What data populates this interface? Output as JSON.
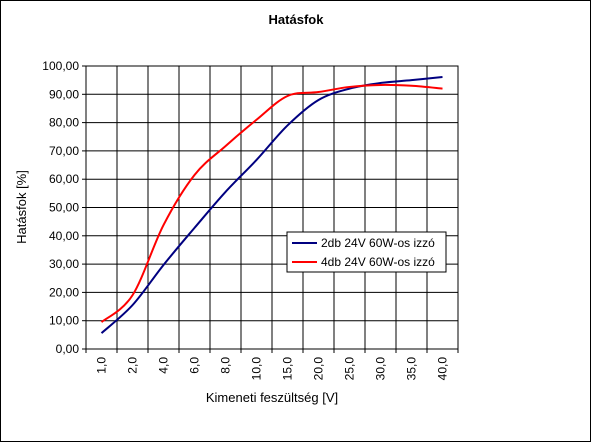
{
  "chart_data": {
    "type": "line",
    "title": "Hatásfok",
    "x_label": "Kimeneti feszültség [V]",
    "y_label": "Hatásfok [%]",
    "categories": [
      "1,0",
      "2,0",
      "4,0",
      "6,0",
      "8,0",
      "10,0",
      "15,0",
      "20,0",
      "25,0",
      "30,0",
      "35,0",
      "40,0"
    ],
    "series": [
      {
        "name": "2db 24V 60W-os izzó",
        "color": "#000080",
        "values": [
          5.6,
          15.5,
          29.7,
          42.8,
          55.5,
          66.8,
          79,
          88,
          92,
          94,
          95,
          96.1
        ]
      },
      {
        "name": "4db 24V 60W-os izzó",
        "color": "#ff0000",
        "values": [
          9.5,
          19,
          43.8,
          61.5,
          71.7,
          81,
          89.4,
          90.8,
          92.6,
          93.3,
          93,
          92
        ]
      }
    ],
    "ylim": [
      0,
      100
    ],
    "yticks": [
      {
        "value": 0,
        "label": "0,00"
      },
      {
        "value": 10,
        "label": "10,00"
      },
      {
        "value": 20,
        "label": "20,00"
      },
      {
        "value": 30,
        "label": "30,00"
      },
      {
        "value": 40,
        "label": "40,00"
      },
      {
        "value": 50,
        "label": "50,00"
      },
      {
        "value": 60,
        "label": "60,00"
      },
      {
        "value": 70,
        "label": "70,00"
      },
      {
        "value": 80,
        "label": "80,00"
      },
      {
        "value": 90,
        "label": "90,00"
      },
      {
        "value": 100,
        "label": "100,00"
      }
    ],
    "grid": true,
    "legend": "right"
  }
}
